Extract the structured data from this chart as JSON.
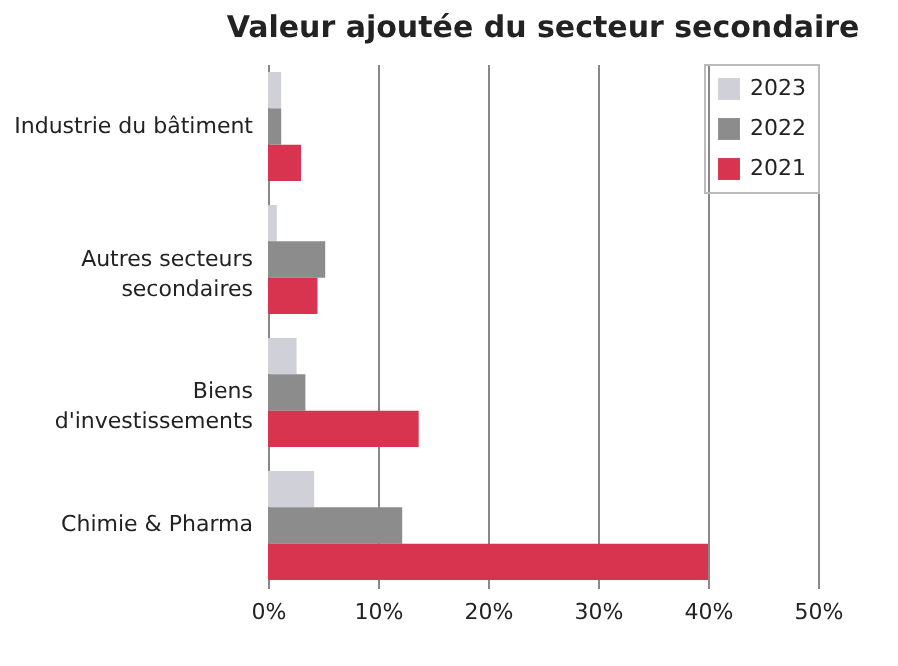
{
  "chart_data": {
    "type": "bar",
    "orientation": "horizontal",
    "title": "Valeur ajoutée du secteur secondaire",
    "categories": [
      "Industrie du bâtiment",
      "Autres secteurs secondaires",
      "Biens d'investissements",
      "Chimie & Pharma"
    ],
    "series": [
      {
        "name": "2023",
        "color": "#d0d0d8",
        "values": [
          1.2,
          0.8,
          2.6,
          4.2
        ]
      },
      {
        "name": "2022",
        "color": "#8c8c8c",
        "values": [
          1.2,
          5.2,
          3.4,
          12.2
        ]
      },
      {
        "name": "2021",
        "color": "#d8334f",
        "values": [
          3.0,
          4.5,
          13.7,
          40
        ]
      }
    ],
    "xlim": [
      0,
      50
    ],
    "xticks": [
      {
        "value": 0,
        "label": "0%"
      },
      {
        "value": 10,
        "label": "10%"
      },
      {
        "value": 20,
        "label": "20%"
      },
      {
        "value": 30,
        "label": "30%"
      },
      {
        "value": 40,
        "label": "40%"
      },
      {
        "value": 50,
        "label": "50%"
      }
    ],
    "grid": "x",
    "legend": "top right"
  }
}
